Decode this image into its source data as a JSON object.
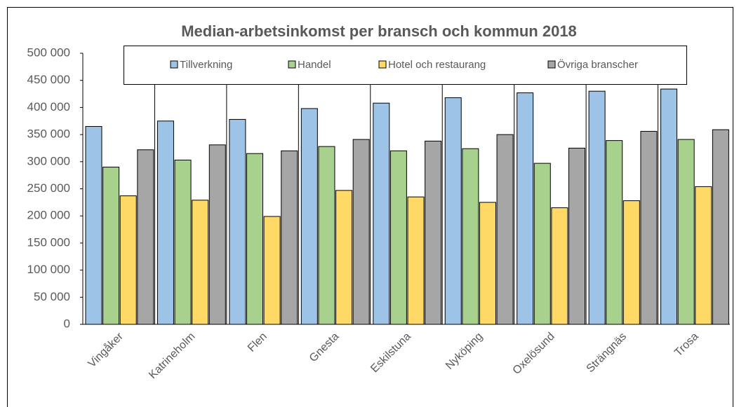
{
  "chart_data": {
    "type": "bar",
    "title": "Median-arbetsinkomst per bransch och kommun 2018",
    "categories": [
      "Vingåker",
      "Katrineholm",
      "Flen",
      "Gnesta",
      "Eskilstuna",
      "Nyköping",
      "Oxelösund",
      "Strängnäs",
      "Trosa"
    ],
    "series": [
      {
        "name": "Tillverkning",
        "color": "#9dc3e6",
        "values": [
          365000,
          375000,
          378000,
          398000,
          408000,
          418000,
          427000,
          430000,
          434000
        ]
      },
      {
        "name": "Handel",
        "color": "#a9d18e",
        "values": [
          290000,
          303000,
          315000,
          328000,
          320000,
          324000,
          297000,
          339000,
          341000
        ]
      },
      {
        "name": "Hotel och restaurang",
        "color": "#ffd966",
        "values": [
          237000,
          229000,
          199000,
          247000,
          235000,
          225000,
          215000,
          228000,
          254000
        ]
      },
      {
        "name": "Övriga branscher",
        "color": "#a6a6a6",
        "values": [
          322000,
          331000,
          320000,
          341000,
          338000,
          350000,
          325000,
          356000,
          359000
        ]
      }
    ],
    "ylim": [
      0,
      500000
    ],
    "yticks": [
      0,
      {
        "value": 50000,
        "label": "50 000"
      },
      {
        "value": 100000,
        "label": "100 000"
      },
      {
        "value": 150000,
        "label": "150 000"
      },
      {
        "value": 200000,
        "label": "200 000"
      },
      {
        "value": 250000,
        "label": "250 000"
      },
      {
        "value": 300000,
        "label": "300 000"
      },
      {
        "value": 350000,
        "label": "350 000"
      },
      {
        "value": 400000,
        "label": "400 000"
      },
      {
        "value": 450000,
        "label": "450 000"
      },
      {
        "value": 500000,
        "label": "500 000"
      }
    ],
    "legend": "top"
  }
}
